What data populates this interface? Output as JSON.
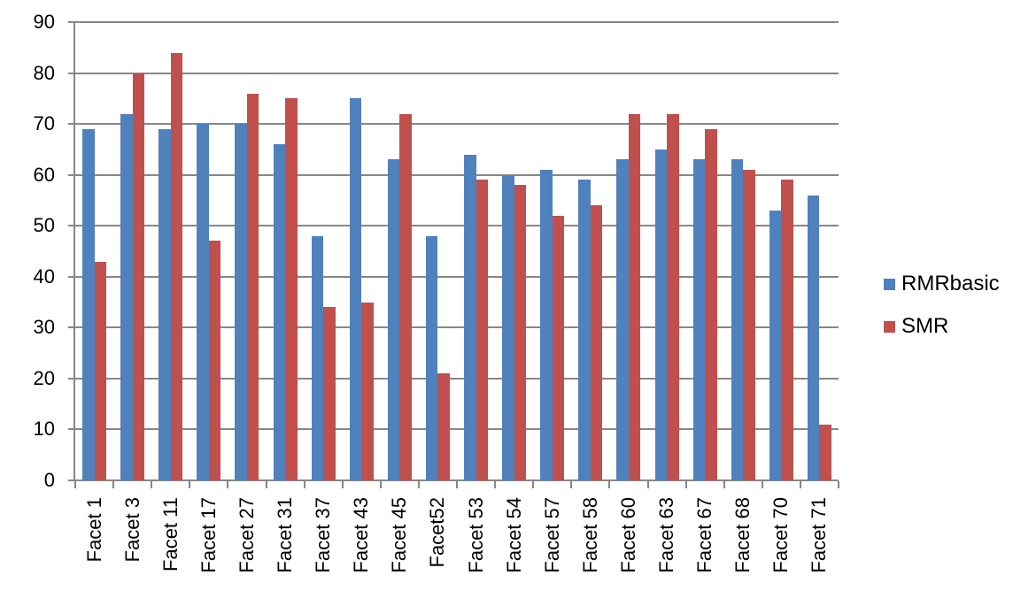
{
  "chart_data": {
    "type": "bar",
    "title": "",
    "xlabel": "",
    "ylabel": "",
    "categories": [
      "Facet 1",
      "Facet 3",
      "Facet 11",
      "Facet 17",
      "Facet 27",
      "Facet 31",
      "Facet 37",
      "Facet 43",
      "Facet 45",
      "Facet52",
      "Facet 53",
      "Facet 54",
      "Facet 57",
      "Facet 58",
      "Facet 60",
      "Facet 63",
      "Facet 67",
      "Facet 68",
      "Facet 70",
      "Facet 71"
    ],
    "series": [
      {
        "name": "RMRbasic",
        "color": "#4F81BD",
        "values": [
          69,
          72,
          69,
          70,
          70,
          66,
          48,
          75,
          63,
          48,
          64,
          60,
          61,
          59,
          63,
          65,
          63,
          63,
          53,
          56
        ]
      },
      {
        "name": "SMR",
        "color": "#C0504D",
        "values": [
          43,
          80,
          84,
          47,
          76,
          75,
          34,
          35,
          72,
          21,
          59,
          58,
          52,
          54,
          72,
          72,
          69,
          61,
          59,
          11
        ]
      }
    ],
    "ylim": [
      0,
      90
    ],
    "y_ticks": [
      0,
      10,
      20,
      30,
      40,
      50,
      60,
      70,
      80,
      90
    ],
    "grid": "horizontal",
    "legend_position": "right",
    "grid_color": "#878787",
    "axis_color": "#878787",
    "text_color": "#000000",
    "background": "#FFFFFF"
  }
}
